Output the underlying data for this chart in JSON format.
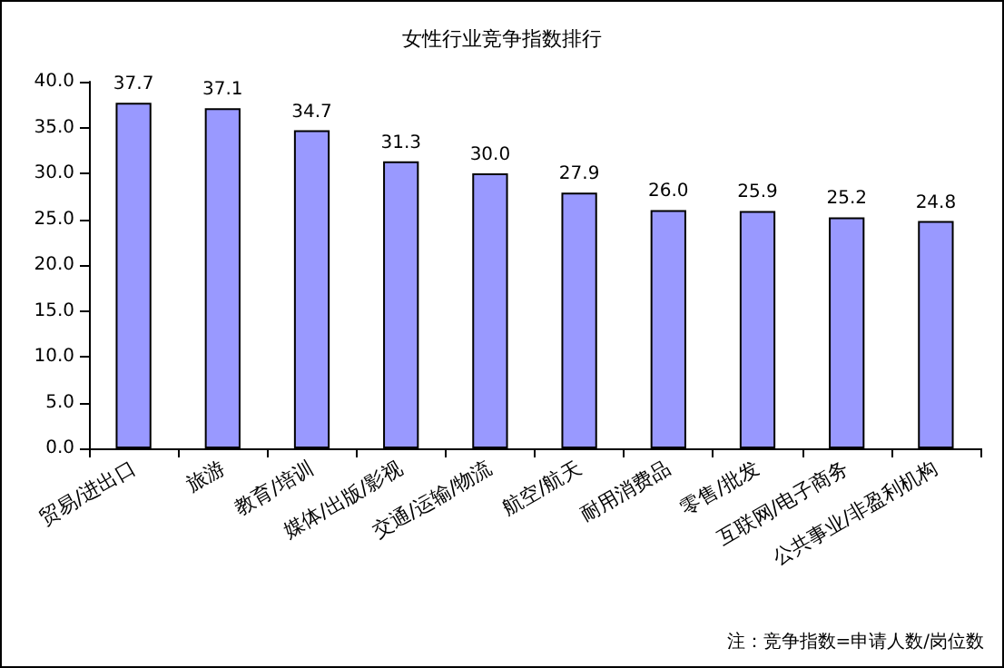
{
  "chart_data": {
    "type": "bar",
    "title": "女性行业竞争指数排行",
    "categories": [
      "贸易/进出口",
      "旅游",
      "教育/培训",
      "媒体/出版/影视",
      "交通/运输/物流",
      "航空/航天",
      "耐用消费品",
      "零售/批发",
      "互联网/电子商务",
      "公共事业/非盈利机构"
    ],
    "values": [
      37.7,
      37.1,
      34.7,
      31.3,
      30.0,
      27.9,
      26.0,
      25.9,
      25.2,
      24.8
    ],
    "value_labels": [
      "37.7",
      "37.1",
      "34.7",
      "31.3",
      "30.0",
      "27.9",
      "26.0",
      "25.9",
      "25.2",
      "24.8"
    ],
    "color": "#9999ff",
    "ylim": [
      0,
      40
    ],
    "yticks": [
      {
        "value": 0,
        "label": "0.0"
      },
      {
        "value": 5,
        "label": "5.0"
      },
      {
        "value": 10,
        "label": "10.0"
      },
      {
        "value": 15,
        "label": "15.0"
      },
      {
        "value": 20,
        "label": "20.0"
      },
      {
        "value": 25,
        "label": "25.0"
      },
      {
        "value": 30,
        "label": "30.0"
      },
      {
        "value": 35,
        "label": "35.0"
      },
      {
        "value": 40,
        "label": "40.0"
      }
    ],
    "grid": false,
    "annotations": [
      "注：竞争指数=申请人数/岗位数"
    ]
  }
}
